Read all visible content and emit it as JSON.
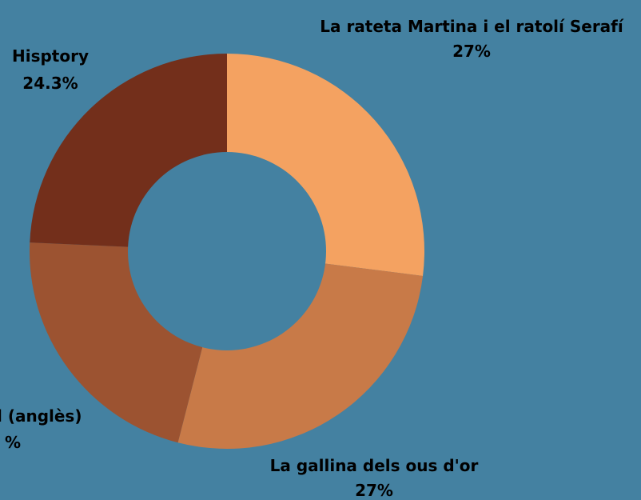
{
  "chart_data": {
    "type": "pie",
    "donut": true,
    "legend": "none",
    "slices": [
      {
        "label": "La rateta Martina i el ratolí Serafí",
        "percent_label": "27%",
        "value": 27,
        "color": "#f4a261"
      },
      {
        "label": "La gallina dels ous d'or",
        "percent_label": "27%",
        "value": 27,
        "color": "#c87a48"
      },
      {
        "label": "l (anglès)",
        "percent_label": "%",
        "value": 21.7,
        "color": "#9c5331"
      },
      {
        "label": "Hisptory",
        "percent_label": "24.3%",
        "value": 24.3,
        "color": "#732f1b"
      }
    ]
  },
  "colors": {
    "background": "#4481a1",
    "label_text": "#000000"
  }
}
